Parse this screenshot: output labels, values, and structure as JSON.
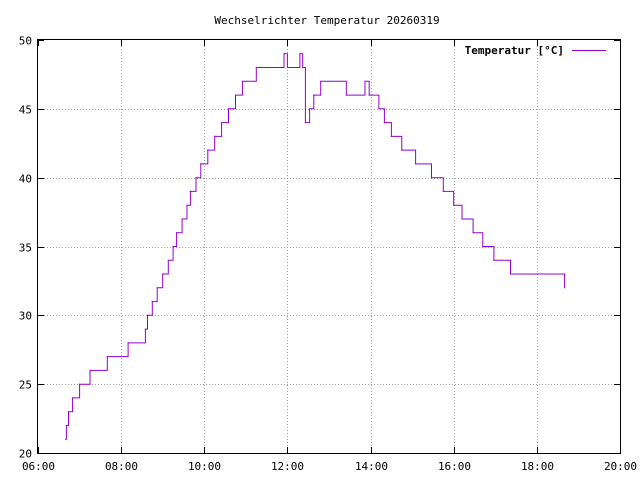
{
  "chart_data": {
    "type": "line",
    "title": "Wechselrichter Temperatur 20260319",
    "xlabel": "",
    "ylabel": "",
    "xlim": [
      "06:00",
      "20:00"
    ],
    "ylim": [
      20,
      50
    ],
    "x_ticks": [
      "06:00",
      "08:00",
      "10:00",
      "12:00",
      "14:00",
      "16:00",
      "18:00",
      "20:00"
    ],
    "y_ticks": [
      "20",
      "25",
      "30",
      "35",
      "40",
      "45",
      "50"
    ],
    "grid": true,
    "legend_position": "top-right",
    "series": [
      {
        "name": "Temperatur [°C]",
        "color": "#9400d3",
        "style": "step",
        "points": [
          [
            "06:40",
            21
          ],
          [
            "06:41",
            22
          ],
          [
            "06:44",
            23
          ],
          [
            "06:50",
            24
          ],
          [
            "07:00",
            25
          ],
          [
            "07:15",
            26
          ],
          [
            "07:40",
            27
          ],
          [
            "08:10",
            28
          ],
          [
            "08:35",
            29
          ],
          [
            "08:38",
            30
          ],
          [
            "08:45",
            31
          ],
          [
            "08:52",
            32
          ],
          [
            "09:00",
            33
          ],
          [
            "09:08",
            34
          ],
          [
            "09:15",
            35
          ],
          [
            "09:20",
            36
          ],
          [
            "09:28",
            37
          ],
          [
            "09:35",
            38
          ],
          [
            "09:40",
            39
          ],
          [
            "09:48",
            40
          ],
          [
            "09:55",
            41
          ],
          [
            "10:05",
            42
          ],
          [
            "10:15",
            43
          ],
          [
            "10:25",
            44
          ],
          [
            "10:35",
            45
          ],
          [
            "10:45",
            46
          ],
          [
            "10:55",
            47
          ],
          [
            "11:15",
            48
          ],
          [
            "11:55",
            49
          ],
          [
            "12:00",
            48
          ],
          [
            "12:18",
            49
          ],
          [
            "12:22",
            48
          ],
          [
            "12:26",
            44
          ],
          [
            "12:32",
            45
          ],
          [
            "12:38",
            46
          ],
          [
            "12:48",
            47
          ],
          [
            "13:25",
            46
          ],
          [
            "13:52",
            47
          ],
          [
            "13:58",
            46
          ],
          [
            "14:12",
            45
          ],
          [
            "14:20",
            44
          ],
          [
            "14:30",
            43
          ],
          [
            "14:45",
            42
          ],
          [
            "15:05",
            41
          ],
          [
            "15:28",
            40
          ],
          [
            "15:45",
            39
          ],
          [
            "16:00",
            38
          ],
          [
            "16:12",
            37
          ],
          [
            "16:28",
            36
          ],
          [
            "16:42",
            35
          ],
          [
            "16:58",
            34
          ],
          [
            "17:22",
            33
          ],
          [
            "17:52",
            33
          ],
          [
            "18:00",
            33
          ],
          [
            "18:40",
            32
          ]
        ]
      }
    ]
  }
}
